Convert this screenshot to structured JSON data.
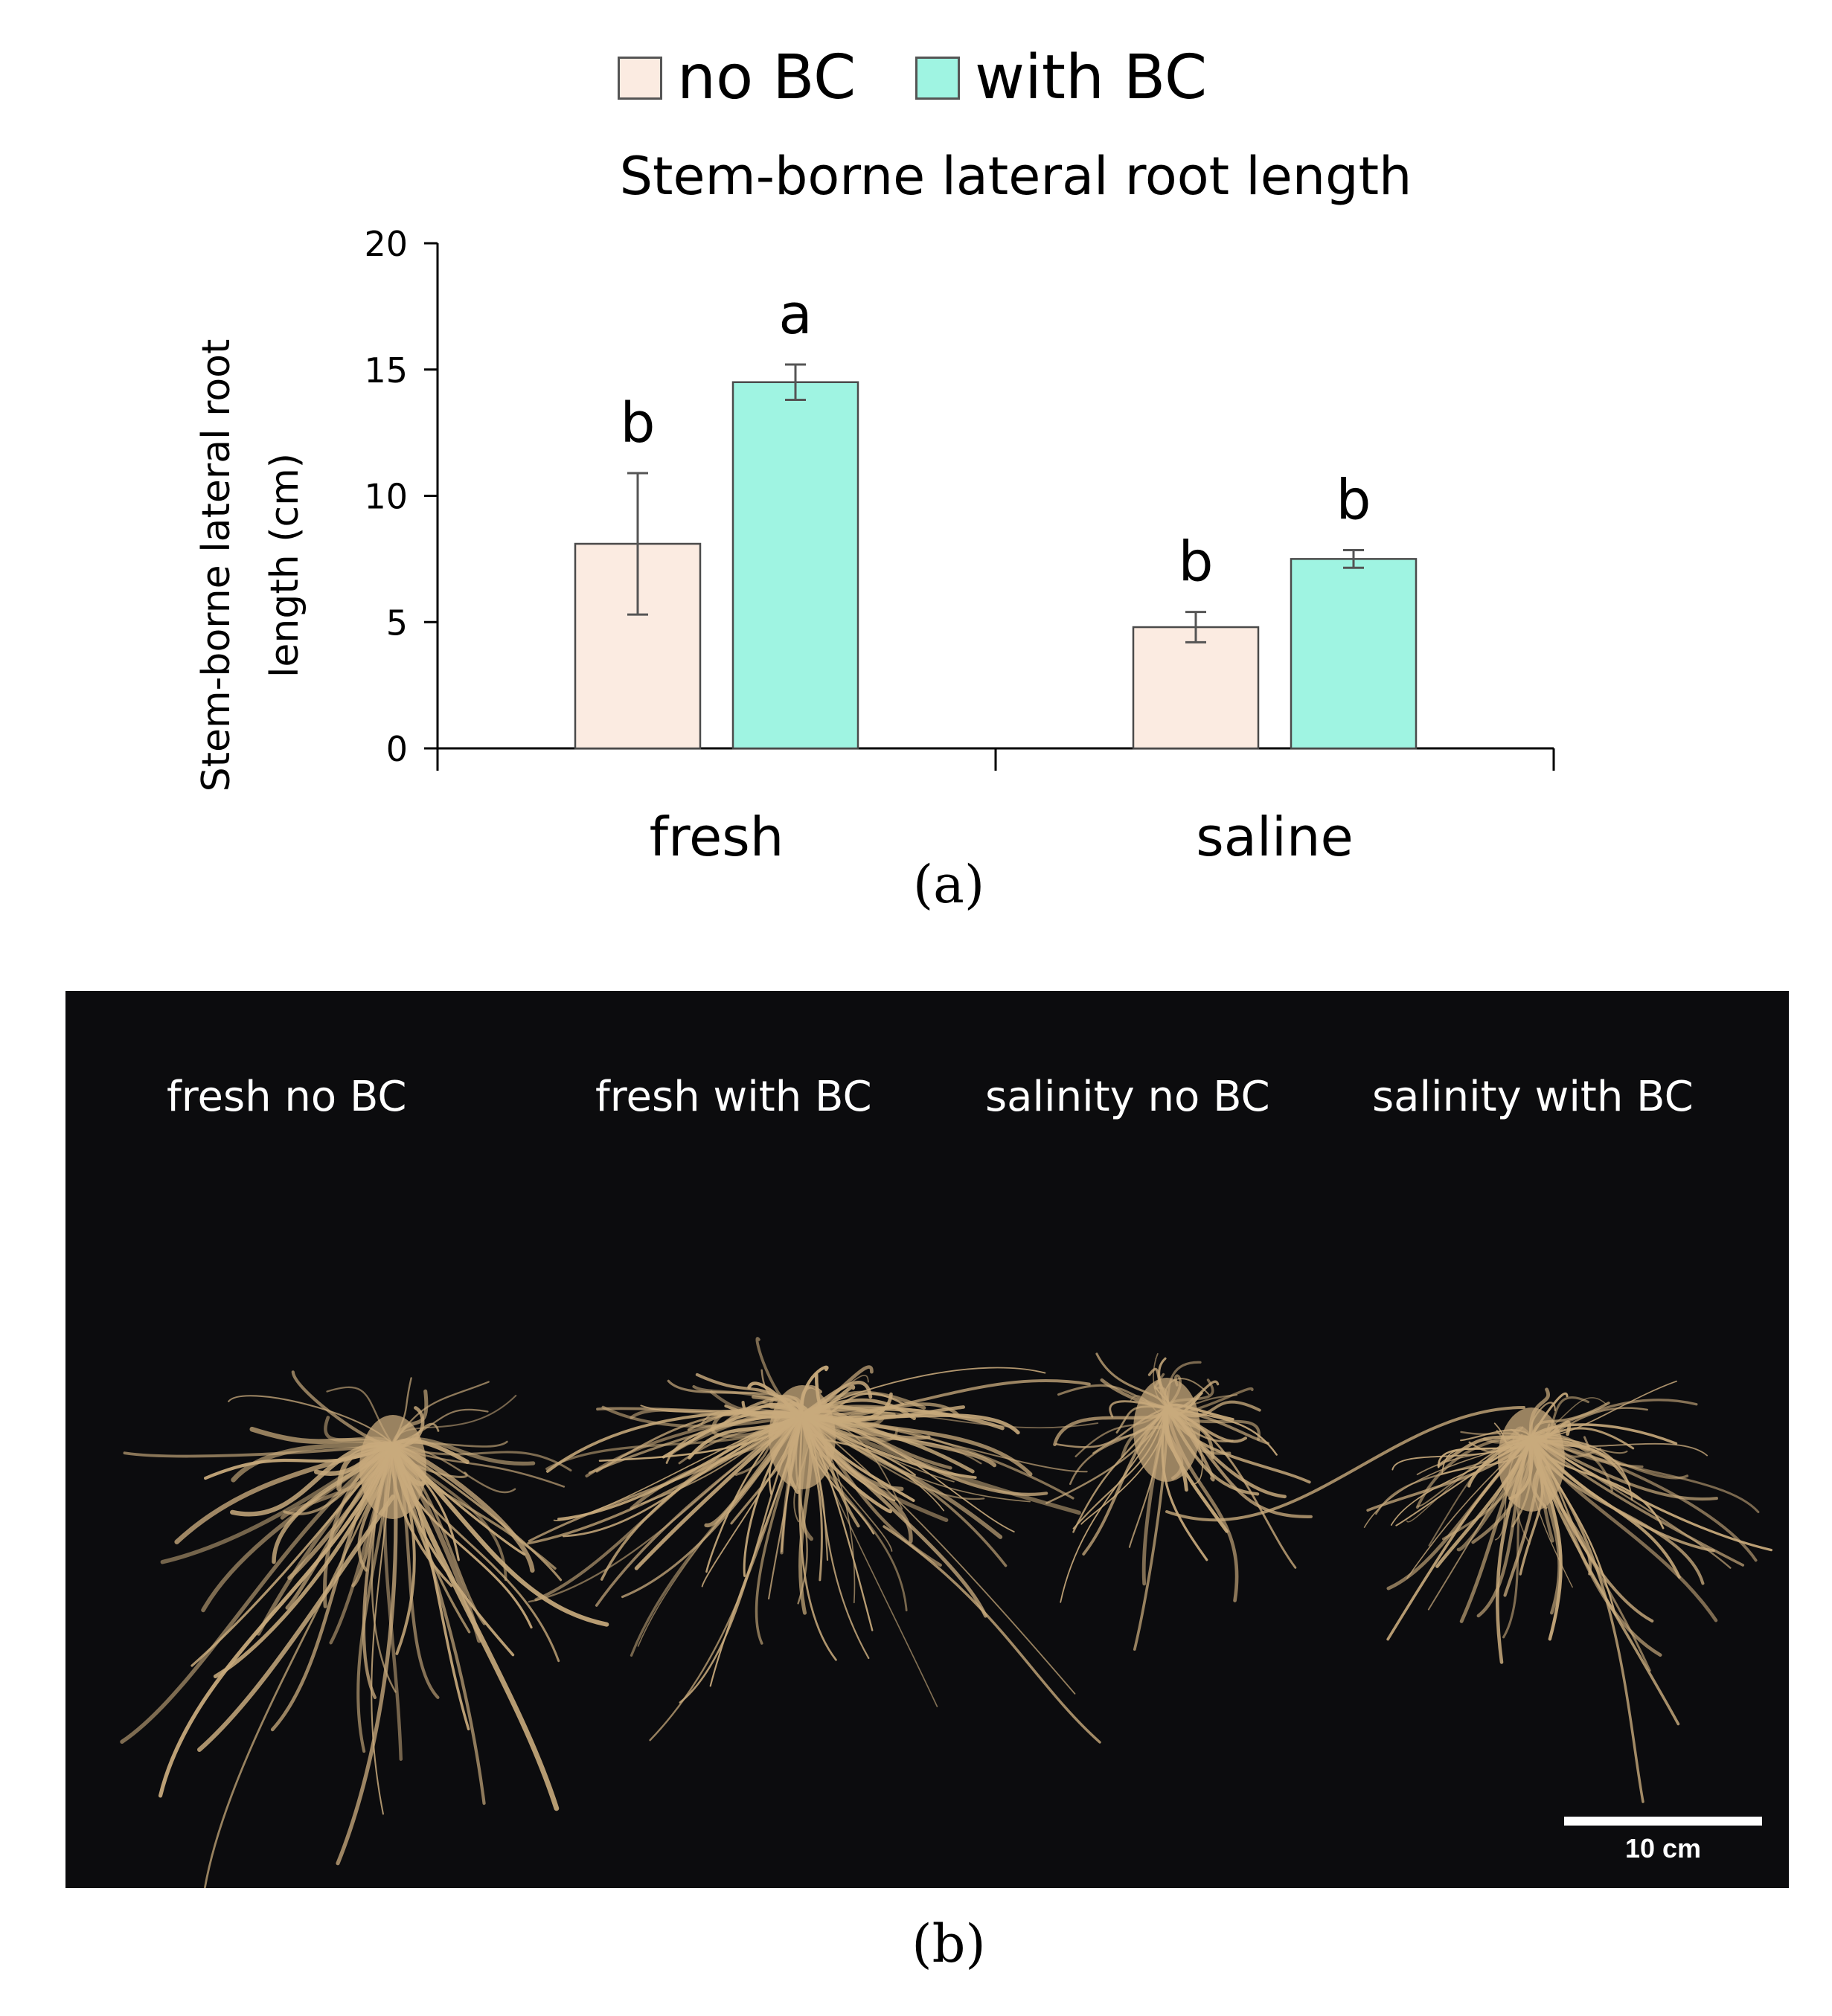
{
  "chart_data": {
    "type": "bar",
    "title": "Stem-borne lateral root length",
    "ylabel_line1": "Stem-borne lateral root",
    "ylabel_line2": "length (cm)",
    "ylim": [
      0,
      20
    ],
    "yticks": [
      0,
      5,
      10,
      15,
      20
    ],
    "categories": [
      "fresh",
      "saline"
    ],
    "series": [
      {
        "name": "no BC",
        "color": "#fbebe1",
        "values": [
          8.1,
          4.8
        ],
        "errors": [
          2.8,
          0.6
        ],
        "letters": [
          "b",
          "b"
        ]
      },
      {
        "name": "with BC",
        "color": "#9ff4e2",
        "values": [
          14.5,
          7.5
        ],
        "errors": [
          0.7,
          0.35
        ],
        "letters": [
          "a",
          "b"
        ]
      }
    ],
    "legend_position": "top"
  },
  "panel_a_label": "(a)",
  "panel_b_label": "(b)",
  "photo": {
    "captions": [
      "fresh no BC",
      "fresh with BC",
      "salinity no BC",
      "salinity with BC"
    ],
    "scale_label": "10 cm",
    "background": "#0c0c0e",
    "root_color": "#c8aa7c"
  }
}
